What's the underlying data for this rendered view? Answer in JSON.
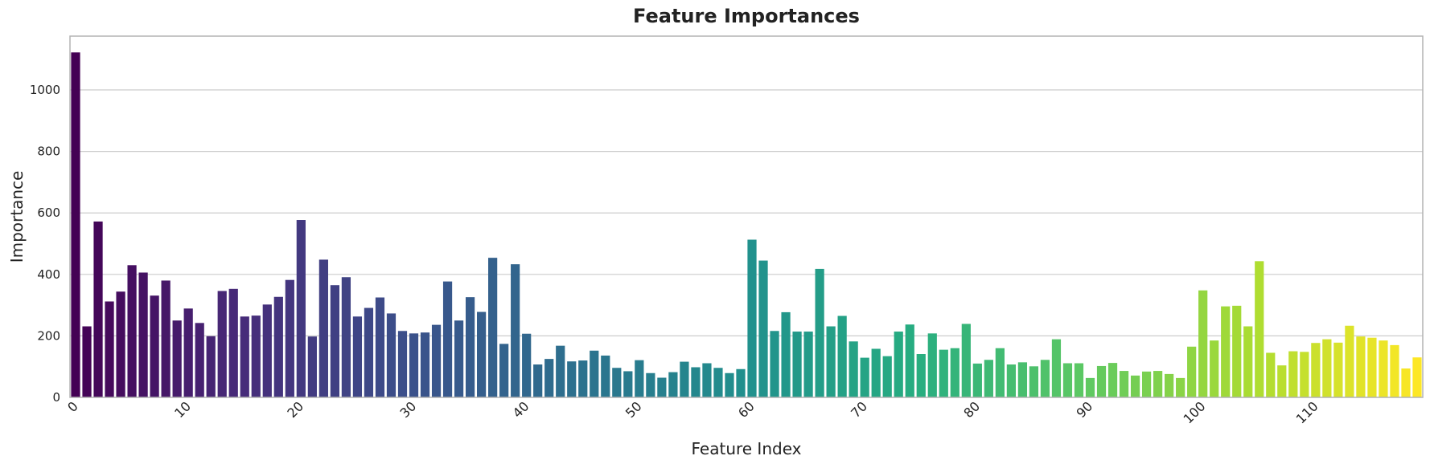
{
  "chart_data": {
    "type": "bar",
    "title": "Feature Importances",
    "xlabel": "Feature Index",
    "ylabel": "Importance",
    "ylim": [
      0,
      1175
    ],
    "yticks": [
      0,
      200,
      400,
      600,
      800,
      1000
    ],
    "xticks": [
      0,
      10,
      20,
      30,
      40,
      50,
      60,
      70,
      80,
      90,
      100,
      110
    ],
    "x_tick_rotation": 45,
    "grid": "y",
    "colormap": "viridis",
    "categories": [
      0,
      1,
      2,
      3,
      4,
      5,
      6,
      7,
      8,
      9,
      10,
      11,
      12,
      13,
      14,
      15,
      16,
      17,
      18,
      19,
      20,
      21,
      22,
      23,
      24,
      25,
      26,
      27,
      28,
      29,
      30,
      31,
      32,
      33,
      34,
      35,
      36,
      37,
      38,
      39,
      40,
      41,
      42,
      43,
      44,
      45,
      46,
      47,
      48,
      49,
      50,
      51,
      52,
      53,
      54,
      55,
      56,
      57,
      58,
      59,
      60,
      61,
      62,
      63,
      64,
      65,
      66,
      67,
      68,
      69,
      70,
      71,
      72,
      73,
      74,
      75,
      76,
      77,
      78,
      79,
      80,
      81,
      82,
      83,
      84,
      85,
      86,
      87,
      88,
      89,
      90,
      91,
      92,
      93,
      94,
      95,
      96,
      97,
      98,
      99,
      100,
      101,
      102,
      103,
      104,
      105,
      106,
      107,
      108,
      109,
      110,
      111,
      112,
      113,
      114,
      115,
      116,
      117,
      118,
      119
    ],
    "values": [
      1122,
      231,
      572,
      312,
      344,
      430,
      406,
      331,
      380,
      250,
      289,
      242,
      199,
      346,
      353,
      263,
      266,
      302,
      327,
      382,
      577,
      198,
      448,
      365,
      391,
      263,
      291,
      325,
      273,
      216,
      208,
      211,
      236,
      377,
      250,
      326,
      278,
      454,
      174,
      433,
      207,
      107,
      125,
      168,
      117,
      120,
      152,
      136,
      96,
      85,
      121,
      79,
      64,
      82,
      116,
      98,
      111,
      96,
      79,
      92,
      513,
      445,
      216,
      277,
      214,
      214,
      418,
      231,
      265,
      182,
      129,
      158,
      134,
      214,
      237,
      141,
      208,
      155,
      160,
      239,
      110,
      122,
      160,
      107,
      114,
      101,
      122,
      189,
      111,
      111,
      63,
      102,
      112,
      86,
      71,
      84,
      86,
      76,
      63,
      165,
      348,
      185,
      296,
      298,
      231,
      443,
      145,
      104,
      150,
      148,
      177,
      189,
      178,
      233,
      198,
      194,
      185,
      170,
      94,
      130
    ]
  }
}
